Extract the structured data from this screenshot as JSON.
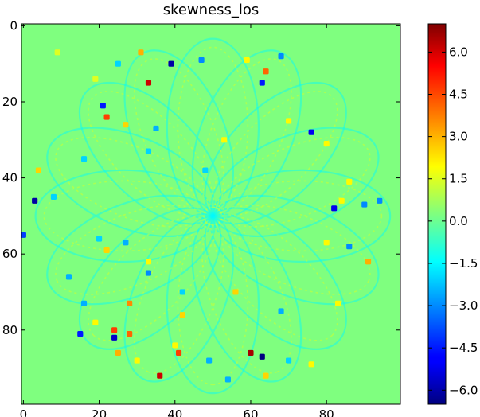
{
  "chart_data": {
    "type": "heatmap",
    "title": "skewness_los",
    "xlabel": "",
    "ylabel": "",
    "xlim": [
      0,
      99
    ],
    "ylim": [
      99,
      0
    ],
    "x_ticks": [
      0,
      20,
      40,
      60,
      80
    ],
    "y_ticks": [
      0,
      20,
      40,
      60,
      80
    ],
    "x_tick_labels": [
      "0",
      "20",
      "40",
      "60",
      "80"
    ],
    "y_tick_labels": [
      "0",
      "20",
      "40",
      "60",
      "80"
    ],
    "grid_size": [
      100,
      100
    ],
    "background_value": 0.0,
    "colormap": "jet",
    "colorbar": {
      "range": [
        -6.5,
        7.0
      ],
      "ticks": [
        6.0,
        4.5,
        3.0,
        1.5,
        0.0,
        -1.5,
        -3.0,
        -4.5,
        -6.0
      ],
      "tick_labels": [
        "6.0",
        "4.5",
        "3.0",
        "1.5",
        "0.0",
        "−1.5",
        "−3.0",
        "−4.5",
        "−6.0"
      ]
    },
    "pattern": {
      "shape": "rosette of overlapping elliptical loops",
      "center": [
        50,
        50
      ],
      "loops": 8,
      "loop_radii": [
        45,
        22
      ],
      "texture_range": [
        -1.5,
        1.5
      ]
    },
    "points": [
      {
        "x": 9,
        "y": 7,
        "value": 1.5
      },
      {
        "x": 19,
        "y": 14,
        "value": 1.5
      },
      {
        "x": 25,
        "y": 10,
        "value": -2.0
      },
      {
        "x": 33,
        "y": 15,
        "value": 6.0
      },
      {
        "x": 31,
        "y": 7,
        "value": 3.0
      },
      {
        "x": 39,
        "y": 10,
        "value": -6.0
      },
      {
        "x": 47,
        "y": 9,
        "value": -3.0
      },
      {
        "x": 59,
        "y": 9,
        "value": 2.0
      },
      {
        "x": 63,
        "y": 15,
        "value": -4.5
      },
      {
        "x": 64,
        "y": 12,
        "value": 4.0
      },
      {
        "x": 68,
        "y": 8,
        "value": -3.0
      },
      {
        "x": 21,
        "y": 21,
        "value": -4.5
      },
      {
        "x": 22,
        "y": 24,
        "value": 4.5
      },
      {
        "x": 76,
        "y": 28,
        "value": -5.0
      },
      {
        "x": 27,
        "y": 26,
        "value": 2.5
      },
      {
        "x": 35,
        "y": 27,
        "value": -2.5
      },
      {
        "x": 53,
        "y": 30,
        "value": 2.0
      },
      {
        "x": 70,
        "y": 25,
        "value": 2.0
      },
      {
        "x": 80,
        "y": 31,
        "value": 2.0
      },
      {
        "x": 4,
        "y": 38,
        "value": 2.5
      },
      {
        "x": 16,
        "y": 35,
        "value": -2.0
      },
      {
        "x": 33,
        "y": 33,
        "value": -2.0
      },
      {
        "x": 48,
        "y": 38,
        "value": -2.0
      },
      {
        "x": 86,
        "y": 41,
        "value": 2.0
      },
      {
        "x": 3,
        "y": 46,
        "value": -6.0
      },
      {
        "x": 8,
        "y": 45,
        "value": -2.0
      },
      {
        "x": 84,
        "y": 46,
        "value": 2.0
      },
      {
        "x": 90,
        "y": 47,
        "value": -3.0
      },
      {
        "x": 94,
        "y": 46,
        "value": -3.0
      },
      {
        "x": 82,
        "y": 48,
        "value": -5.0
      },
      {
        "x": 0,
        "y": 55,
        "value": -4.0
      },
      {
        "x": 20,
        "y": 56,
        "value": -2.0
      },
      {
        "x": 27,
        "y": 57,
        "value": -2.5
      },
      {
        "x": 22,
        "y": 59,
        "value": 2.5
      },
      {
        "x": 80,
        "y": 57,
        "value": 2.0
      },
      {
        "x": 86,
        "y": 58,
        "value": -3.0
      },
      {
        "x": 91,
        "y": 62,
        "value": 3.0
      },
      {
        "x": 33,
        "y": 62,
        "value": 2.0
      },
      {
        "x": 12,
        "y": 66,
        "value": -2.5
      },
      {
        "x": 33,
        "y": 65,
        "value": -3.0
      },
      {
        "x": 42,
        "y": 70,
        "value": -2.0
      },
      {
        "x": 56,
        "y": 70,
        "value": 2.5
      },
      {
        "x": 16,
        "y": 73,
        "value": -2.5
      },
      {
        "x": 28,
        "y": 73,
        "value": 3.5
      },
      {
        "x": 83,
        "y": 73,
        "value": 2.0
      },
      {
        "x": 19,
        "y": 78,
        "value": 2.0
      },
      {
        "x": 42,
        "y": 76,
        "value": 2.5
      },
      {
        "x": 68,
        "y": 75,
        "value": -2.5
      },
      {
        "x": 15,
        "y": 81,
        "value": -4.5
      },
      {
        "x": 24,
        "y": 80,
        "value": 4.5
      },
      {
        "x": 24,
        "y": 82,
        "value": -5.5
      },
      {
        "x": 28,
        "y": 81,
        "value": 4.0
      },
      {
        "x": 40,
        "y": 84,
        "value": 2.0
      },
      {
        "x": 25,
        "y": 86,
        "value": 3.0
      },
      {
        "x": 41,
        "y": 86,
        "value": 4.5
      },
      {
        "x": 60,
        "y": 86,
        "value": 6.5
      },
      {
        "x": 63,
        "y": 87,
        "value": -6.5
      },
      {
        "x": 30,
        "y": 88,
        "value": 2.0
      },
      {
        "x": 49,
        "y": 88,
        "value": -2.5
      },
      {
        "x": 70,
        "y": 88,
        "value": -2.0
      },
      {
        "x": 36,
        "y": 92,
        "value": 6.0
      },
      {
        "x": 54,
        "y": 93,
        "value": -2.5
      },
      {
        "x": 64,
        "y": 92,
        "value": 2.5
      },
      {
        "x": 76,
        "y": 89,
        "value": 2.0
      }
    ]
  }
}
